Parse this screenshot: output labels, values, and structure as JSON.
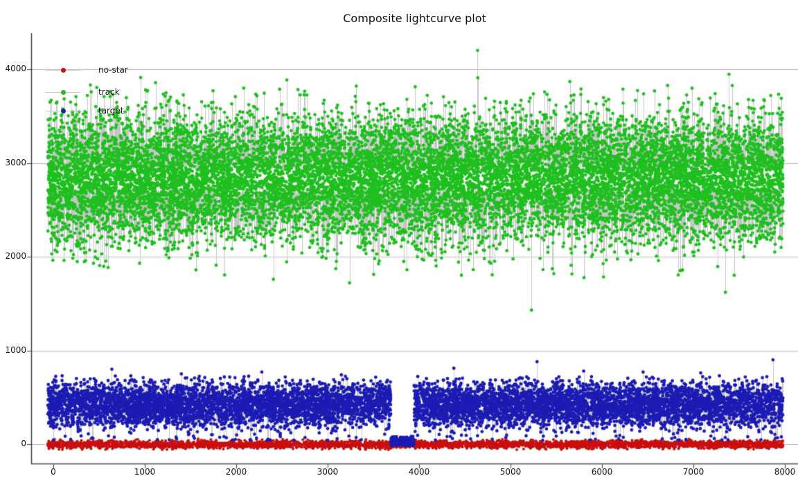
{
  "chart_data": {
    "type": "scatter",
    "title": "Composite lightcurve plot",
    "xlabel": "",
    "ylabel": "",
    "xlim": [
      -250,
      8150
    ],
    "ylim": [
      -210,
      4390
    ],
    "x_ticks": [
      0,
      1000,
      2000,
      3000,
      4000,
      5000,
      6000,
      7000,
      8000
    ],
    "y_ticks": [
      0,
      1000,
      2000,
      3000,
      4000
    ],
    "grid": "horizontal-only",
    "legend_position": "inside-top-left",
    "background_color": "#ffffff",
    "axis_color": "#3c3c3c",
    "grid_color": "#b3b3b3",
    "stem_color": "#c6c6c6",
    "text_color": "#161616",
    "legend": [
      {
        "label": "no-star",
        "color": "#c81010"
      },
      {
        "label": "track",
        "color": "#20bf20"
      },
      {
        "label": "target",
        "color": "#1c1cb4"
      }
    ],
    "series": [
      {
        "name": "track",
        "color": "#20bf20",
        "marker": "circle-with-stem",
        "dot_radius": 2.4,
        "points": 14000,
        "x_range": [
          -60,
          7980
        ],
        "y_mean": 2830,
        "y_sd": 335,
        "y_range": [
          1750,
          3950
        ],
        "outliers": [
          [
            4640,
            4200
          ],
          [
            3240,
            1720
          ],
          [
            5230,
            1430
          ],
          [
            7350,
            1620
          ]
        ]
      },
      {
        "name": "no-star",
        "color": "#c81010",
        "marker": "circle",
        "dot_radius": 2.0,
        "points": 4000,
        "x_range": [
          -60,
          7980
        ],
        "y_mean": -3,
        "y_sd": 20,
        "y_range": [
          -60,
          58
        ],
        "outliers": []
      },
      {
        "name": "target",
        "color": "#1c1cb4",
        "marker": "circle-with-stem",
        "dot_radius": 2.4,
        "points": 9000,
        "x_range": [
          -60,
          7980
        ],
        "y_mean": 420,
        "y_sd": 120,
        "y_range": [
          140,
          730
        ],
        "dropout_gap": {
          "x_range": [
            3690,
            3945
          ],
          "y_mean": 30,
          "y_sd": 25,
          "y_range": [
            -20,
            85
          ]
        },
        "low_tail_fraction": 0.015,
        "low_tail_y_range": [
          40,
          140
        ],
        "outliers": [
          [
            640,
            800
          ],
          [
            1400,
            750
          ],
          [
            2280,
            770
          ],
          [
            3150,
            740
          ],
          [
            4380,
            810
          ],
          [
            5290,
            880
          ],
          [
            5800,
            780
          ],
          [
            6450,
            770
          ],
          [
            7080,
            760
          ],
          [
            7870,
            900
          ]
        ]
      }
    ]
  }
}
